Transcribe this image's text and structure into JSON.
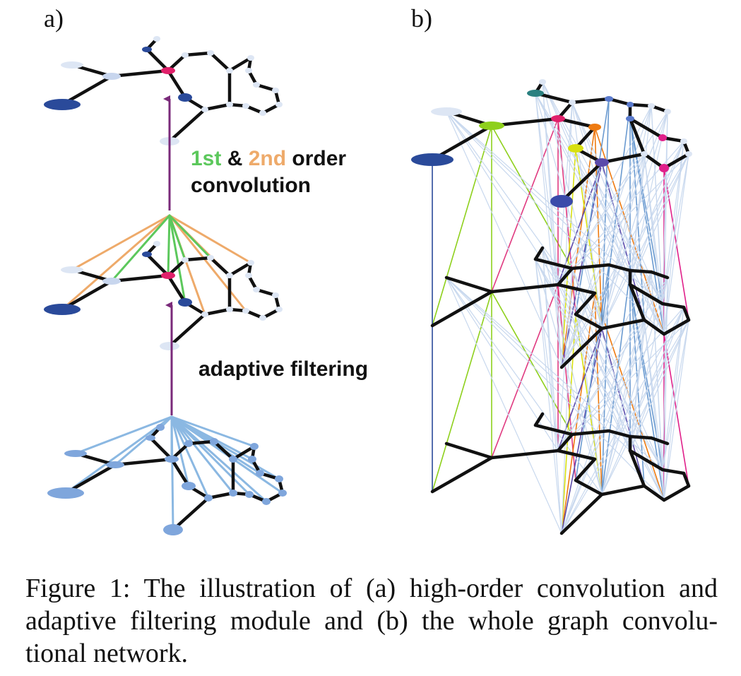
{
  "panels": {
    "a_label": "a)",
    "b_label": "b)"
  },
  "annotations": {
    "order_1st": "1st",
    "amp": " & ",
    "order_2nd": "2nd",
    "order_rest": " order",
    "convolution": "convolution",
    "adaptive": "adaptive filtering"
  },
  "caption": {
    "line1": "Figure 1: The illustration of (a) high-order convolution and",
    "line2": "adaptive filtering module and (b) the whole graph convolu-",
    "line3": "tional network."
  },
  "colors": {
    "bond": "#111111",
    "first_order": "#5cc85c",
    "second_order": "#eeaa6a",
    "adaptive": "#8bb8e2",
    "arrow": "#7a2a7a",
    "node_light": "#dde6f4",
    "node_dark": "#2a4a9a",
    "node_red": "#e0206a",
    "green_node": "#8ed01c",
    "teal_node": "#2a8080",
    "orange_node": "#ee7a10",
    "yellow_node": "#d8e010",
    "magenta_node": "#e0208a",
    "purple_node": "#5a4aaa",
    "pink_line": "#e03a80",
    "pale_line": "#c8d8ee"
  }
}
